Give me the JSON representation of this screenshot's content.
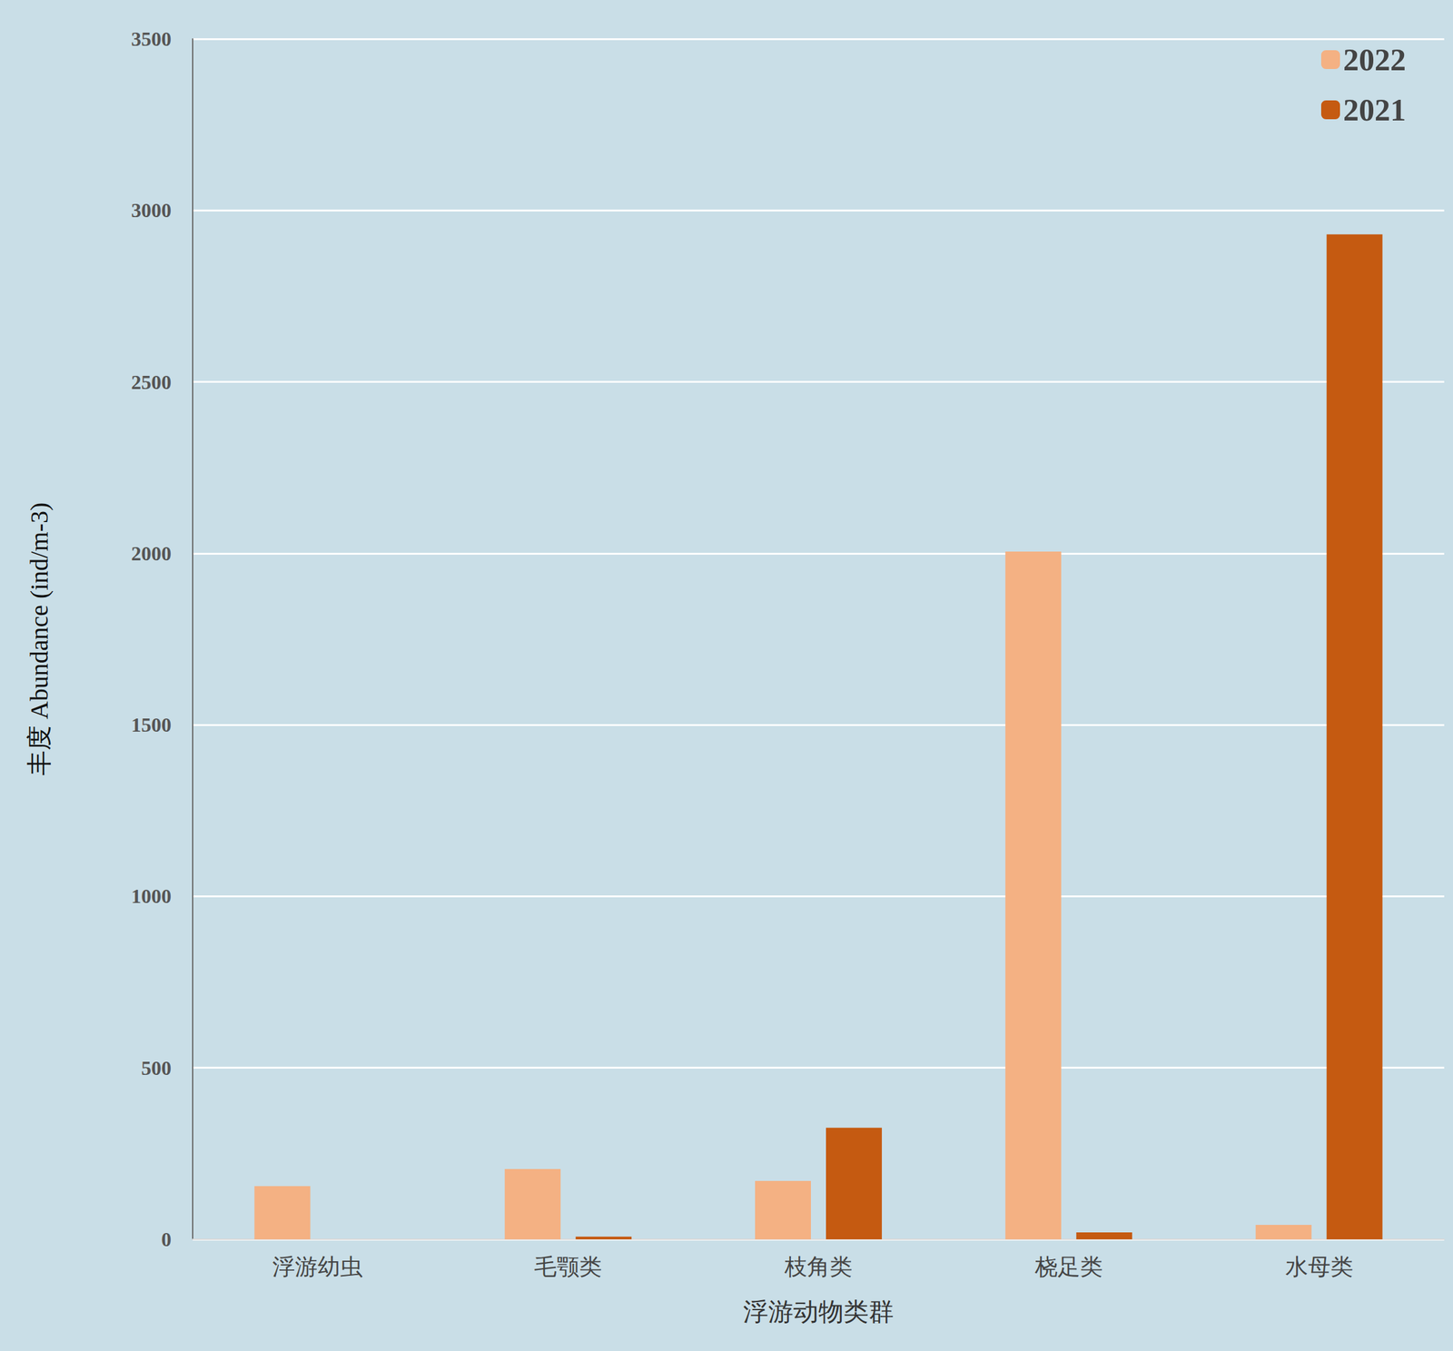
{
  "chart_data": {
    "type": "bar",
    "categories": [
      "浮游幼虫",
      "毛颚类",
      "枝角类",
      "桡足类",
      "水母类"
    ],
    "series": [
      {
        "name": "2022",
        "color": "#f4b183",
        "values": [
          155,
          205,
          170,
          2005,
          42
        ]
      },
      {
        "name": "2021",
        "color": "#c55a11",
        "values": [
          0,
          8,
          325,
          20,
          2930
        ]
      }
    ],
    "x_label": "浮游动物类群",
    "y_label": "丰度 Abundance (ind/m-3)",
    "ylim": [
      0,
      3500
    ],
    "yticks": [
      0,
      500,
      1000,
      1500,
      2000,
      2500,
      3000,
      3500
    ],
    "grid": true,
    "legend": "upper right"
  }
}
